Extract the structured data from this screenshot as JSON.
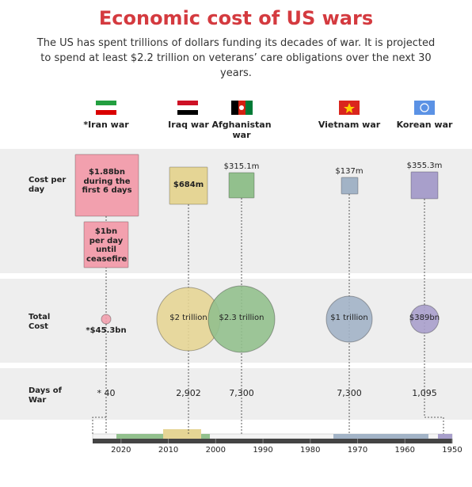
{
  "title": "Economic cost of US wars",
  "subtitle": "The US has spent trillions of dollars funding its decades of war. It is projected to spend at least $2.2 trillion on veterans’ care obligations over the next 30 years.",
  "row_labels": [
    "Cost per day",
    "Total Cost",
    "Days of War"
  ],
  "wars": [
    {
      "name": "*Iran war",
      "color": "#f2a0ae",
      "cost_per_day": [
        "$1.88bn during the first 6 days",
        "$1bn per day until ceasefire"
      ],
      "total_cost": "*$45.3bn",
      "days": "* 40"
    },
    {
      "name": "Iraq war",
      "color": "#e5d595",
      "cost_per_day": [
        "$684m"
      ],
      "total_cost": "$2 trillion",
      "days": "2,902"
    },
    {
      "name": "Afghanistan war",
      "color": "#92c08d",
      "cost_per_day": [
        "$315.1m"
      ],
      "total_cost": "$2.3 trillion",
      "days": "7,300"
    },
    {
      "name": "Vietnam war",
      "color": "#a2b3c6",
      "cost_per_day": [
        "$137m"
      ],
      "total_cost": "$1 trillion",
      "days": "7,300"
    },
    {
      "name": "Korean war",
      "color": "#a89fcb",
      "cost_per_day": [
        "$355.3m"
      ],
      "total_cost": "$389bn",
      "days": "1,095"
    }
  ],
  "timeline": {
    "xlim": [
      2026,
      1950
    ],
    "ticks": [
      2020,
      2010,
      2000,
      1990,
      1980,
      1970,
      1960,
      1950
    ]
  }
}
